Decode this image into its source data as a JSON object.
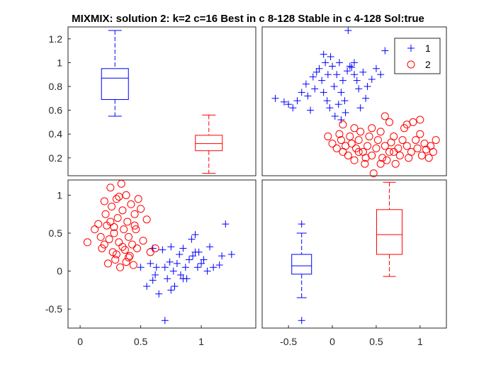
{
  "title": "MIXMIX: solution 2: k=2 c=16 Best in c 8-128 Stable in c 4-128 Sol:true",
  "colors": {
    "group1": "#0000ff",
    "group2": "#ff0000",
    "axes": "#262626"
  },
  "legend": {
    "placement": "top-right (panel 2)",
    "entries": [
      "1",
      "2"
    ],
    "markers": [
      "plus",
      "circle"
    ]
  },
  "chart_data": [
    {
      "panel": "top-left",
      "type": "box",
      "ylim": [
        0.05,
        1.3
      ],
      "yticks": [
        0.2,
        0.4,
        0.6,
        0.8,
        1,
        1.2
      ],
      "ytick_labels": [
        "0.2",
        "0.4",
        "0.6",
        "0.8",
        "1",
        "1.2"
      ],
      "boxes": [
        {
          "group": "1",
          "whisker_low": 0.55,
          "q1": 0.69,
          "median": 0.87,
          "q3": 0.95,
          "whisker_high": 1.27,
          "outliers": []
        },
        {
          "group": "2",
          "whisker_low": 0.07,
          "q1": 0.26,
          "median": 0.32,
          "q3": 0.39,
          "whisker_high": 0.56,
          "outliers": []
        }
      ]
    },
    {
      "panel": "top-right",
      "type": "scatter",
      "xlim": [
        -0.8,
        1.3
      ],
      "ylim": [
        0.05,
        1.3
      ],
      "series": [
        {
          "name": "1",
          "points": [
            [
              -0.65,
              0.7
            ],
            [
              -0.55,
              0.67
            ],
            [
              -0.5,
              0.65
            ],
            [
              -0.45,
              0.62
            ],
            [
              -0.4,
              0.68
            ],
            [
              -0.35,
              0.75
            ],
            [
              -0.3,
              0.82
            ],
            [
              -0.28,
              0.72
            ],
            [
              -0.25,
              0.6
            ],
            [
              -0.22,
              0.88
            ],
            [
              -0.2,
              0.78
            ],
            [
              -0.18,
              0.92
            ],
            [
              -0.15,
              0.95
            ],
            [
              -0.12,
              0.85
            ],
            [
              -0.1,
              0.75
            ],
            [
              -0.08,
              1.0
            ],
            [
              -0.06,
              0.68
            ],
            [
              -0.05,
              0.9
            ],
            [
              -0.03,
              0.62
            ],
            [
              -0.02,
              1.05
            ],
            [
              0.0,
              0.97
            ],
            [
              0.02,
              0.8
            ],
            [
              0.03,
              0.55
            ],
            [
              0.05,
              0.9
            ],
            [
              0.07,
              0.65
            ],
            [
              0.08,
              1.0
            ],
            [
              0.1,
              0.75
            ],
            [
              0.12,
              0.85
            ],
            [
              0.14,
              0.68
            ],
            [
              0.15,
              0.58
            ],
            [
              0.17,
              0.93
            ],
            [
              0.18,
              1.27
            ],
            [
              0.2,
              0.97
            ],
            [
              0.22,
              0.96
            ],
            [
              0.25,
              0.9
            ],
            [
              0.28,
              0.85
            ],
            [
              0.3,
              0.78
            ],
            [
              0.32,
              0.62
            ],
            [
              0.35,
              0.92
            ],
            [
              0.38,
              0.7
            ],
            [
              0.4,
              0.8
            ],
            [
              0.45,
              0.86
            ],
            [
              0.5,
              0.95
            ],
            [
              0.55,
              0.9
            ],
            [
              0.6,
              1.1
            ],
            [
              0.8,
              1.15
            ],
            [
              0.1,
              0.52
            ],
            [
              -0.1,
              1.07
            ],
            [
              0.25,
              1.0
            ]
          ]
        },
        {
          "name": "2",
          "points": [
            [
              -0.05,
              0.38
            ],
            [
              0.0,
              0.32
            ],
            [
              0.05,
              0.28
            ],
            [
              0.08,
              0.4
            ],
            [
              0.1,
              0.35
            ],
            [
              0.12,
              0.25
            ],
            [
              0.15,
              0.3
            ],
            [
              0.18,
              0.22
            ],
            [
              0.2,
              0.38
            ],
            [
              0.22,
              0.32
            ],
            [
              0.25,
              0.18
            ],
            [
              0.27,
              0.28
            ],
            [
              0.3,
              0.35
            ],
            [
              0.32,
              0.42
            ],
            [
              0.35,
              0.25
            ],
            [
              0.37,
              0.15
            ],
            [
              0.4,
              0.3
            ],
            [
              0.42,
              0.38
            ],
            [
              0.45,
              0.22
            ],
            [
              0.47,
              0.07
            ],
            [
              0.5,
              0.28
            ],
            [
              0.52,
              0.35
            ],
            [
              0.55,
              0.42
            ],
            [
              0.57,
              0.2
            ],
            [
              0.6,
              0.3
            ],
            [
              0.62,
              0.18
            ],
            [
              0.65,
              0.25
            ],
            [
              0.67,
              0.33
            ],
            [
              0.7,
              0.38
            ],
            [
              0.72,
              0.15
            ],
            [
              0.75,
              0.28
            ],
            [
              0.77,
              0.22
            ],
            [
              0.8,
              0.35
            ],
            [
              0.82,
              0.45
            ],
            [
              0.85,
              0.3
            ],
            [
              0.87,
              0.2
            ],
            [
              0.9,
              0.25
            ],
            [
              0.92,
              0.5
            ],
            [
              0.95,
              0.35
            ],
            [
              0.97,
              0.28
            ],
            [
              1.0,
              0.4
            ],
            [
              1.02,
              0.22
            ],
            [
              1.05,
              0.32
            ],
            [
              1.07,
              0.27
            ],
            [
              1.1,
              0.2
            ],
            [
              1.12,
              0.3
            ],
            [
              1.15,
              0.25
            ],
            [
              1.18,
              0.35
            ],
            [
              0.6,
              0.55
            ],
            [
              0.85,
              0.48
            ],
            [
              0.65,
              0.5
            ],
            [
              0.45,
              0.45
            ],
            [
              0.25,
              0.45
            ],
            [
              0.12,
              0.48
            ],
            [
              1.0,
              0.52
            ],
            [
              0.7,
              0.25
            ],
            [
              0.38,
              0.2
            ],
            [
              0.55,
              0.15
            ],
            [
              0.3,
              0.25
            ]
          ]
        }
      ]
    },
    {
      "panel": "bottom-left",
      "type": "scatter",
      "xlim": [
        -0.1,
        1.45
      ],
      "ylim": [
        -0.75,
        1.2
      ],
      "xticks": [
        0,
        0.5,
        1
      ],
      "xtick_labels": [
        "0",
        "0.5",
        "1"
      ],
      "yticks": [
        -0.5,
        0,
        0.5,
        1
      ],
      "ytick_labels": [
        "-0.5",
        "0",
        "0.5",
        "1"
      ],
      "series": [
        {
          "name": "1",
          "points": [
            [
              0.5,
              0.05
            ],
            [
              0.55,
              -0.2
            ],
            [
              0.58,
              0.1
            ],
            [
              0.6,
              0.3
            ],
            [
              0.62,
              -0.05
            ],
            [
              0.63,
              0.05
            ],
            [
              0.65,
              -0.3
            ],
            [
              0.68,
              0.28
            ],
            [
              0.7,
              -0.65
            ],
            [
              0.72,
              -0.1
            ],
            [
              0.74,
              0.12
            ],
            [
              0.75,
              -0.25
            ],
            [
              0.77,
              0.0
            ],
            [
              0.78,
              -0.2
            ],
            [
              0.8,
              0.1
            ],
            [
              0.82,
              0.22
            ],
            [
              0.83,
              -0.05
            ],
            [
              0.85,
              0.3
            ],
            [
              0.87,
              0.05
            ],
            [
              0.88,
              -0.1
            ],
            [
              0.9,
              0.15
            ],
            [
              0.92,
              0.42
            ],
            [
              0.93,
              0.2
            ],
            [
              0.95,
              0.25
            ],
            [
              0.97,
              0.05
            ],
            [
              0.98,
              0.25
            ],
            [
              1.0,
              0.1
            ],
            [
              1.02,
              0.15
            ],
            [
              1.05,
              0.0
            ],
            [
              1.07,
              0.32
            ],
            [
              1.1,
              0.05
            ],
            [
              1.15,
              0.08
            ],
            [
              1.17,
              0.2
            ],
            [
              1.2,
              0.62
            ],
            [
              1.25,
              0.22
            ],
            [
              0.85,
              -0.1
            ],
            [
              0.75,
              0.32
            ],
            [
              0.95,
              0.48
            ],
            [
              0.6,
              -0.12
            ],
            [
              0.7,
              0.05
            ]
          ]
        },
        {
          "name": "2",
          "points": [
            [
              0.06,
              0.38
            ],
            [
              0.12,
              0.55
            ],
            [
              0.15,
              0.62
            ],
            [
              0.17,
              0.45
            ],
            [
              0.18,
              0.3
            ],
            [
              0.2,
              0.92
            ],
            [
              0.21,
              0.75
            ],
            [
              0.22,
              0.6
            ],
            [
              0.23,
              0.1
            ],
            [
              0.24,
              0.42
            ],
            [
              0.25,
              1.1
            ],
            [
              0.26,
              0.85
            ],
            [
              0.27,
              0.25
            ],
            [
              0.28,
              0.5
            ],
            [
              0.29,
              0.15
            ],
            [
              0.3,
              0.95
            ],
            [
              0.31,
              0.7
            ],
            [
              0.32,
              0.38
            ],
            [
              0.33,
              0.05
            ],
            [
              0.34,
              1.15
            ],
            [
              0.35,
              0.8
            ],
            [
              0.36,
              0.55
            ],
            [
              0.37,
              0.28
            ],
            [
              0.38,
              1.0
            ],
            [
              0.39,
              0.65
            ],
            [
              0.4,
              0.45
            ],
            [
              0.41,
              0.2
            ],
            [
              0.42,
              0.88
            ],
            [
              0.43,
              0.35
            ],
            [
              0.44,
              0.08
            ],
            [
              0.45,
              0.75
            ],
            [
              0.46,
              0.55
            ],
            [
              0.47,
              0.3
            ],
            [
              0.48,
              0.95
            ],
            [
              0.5,
              0.82
            ],
            [
              0.52,
              0.4
            ],
            [
              0.55,
              0.68
            ],
            [
              0.58,
              0.25
            ],
            [
              0.62,
              0.3
            ],
            [
              0.3,
              0.22
            ],
            [
              0.28,
              0.58
            ],
            [
              0.35,
              0.32
            ],
            [
              0.4,
              0.18
            ],
            [
              0.25,
              0.65
            ],
            [
              0.2,
              0.35
            ],
            [
              0.45,
              0.6
            ],
            [
              0.32,
              0.98
            ],
            [
              0.38,
              0.12
            ]
          ]
        }
      ]
    },
    {
      "panel": "bottom-right",
      "type": "box",
      "xlim": [
        -0.8,
        1.3
      ],
      "ylim": [
        -0.75,
        1.2
      ],
      "xticks": [
        -0.5,
        0,
        0.5,
        1
      ],
      "xtick_labels": [
        "-0.5",
        "0",
        "0.5",
        "1"
      ],
      "boxes": [
        {
          "group": "1",
          "position": -0.35,
          "whisker_low": -0.35,
          "q1": -0.04,
          "median": 0.07,
          "q3": 0.22,
          "whisker_high": 0.5,
          "outliers": [
            0.62,
            -0.65
          ]
        },
        {
          "group": "2",
          "position": 0.65,
          "whisker_low": -0.07,
          "q1": 0.22,
          "median": 0.48,
          "q3": 0.81,
          "whisker_high": 1.17,
          "outliers": []
        }
      ]
    }
  ]
}
